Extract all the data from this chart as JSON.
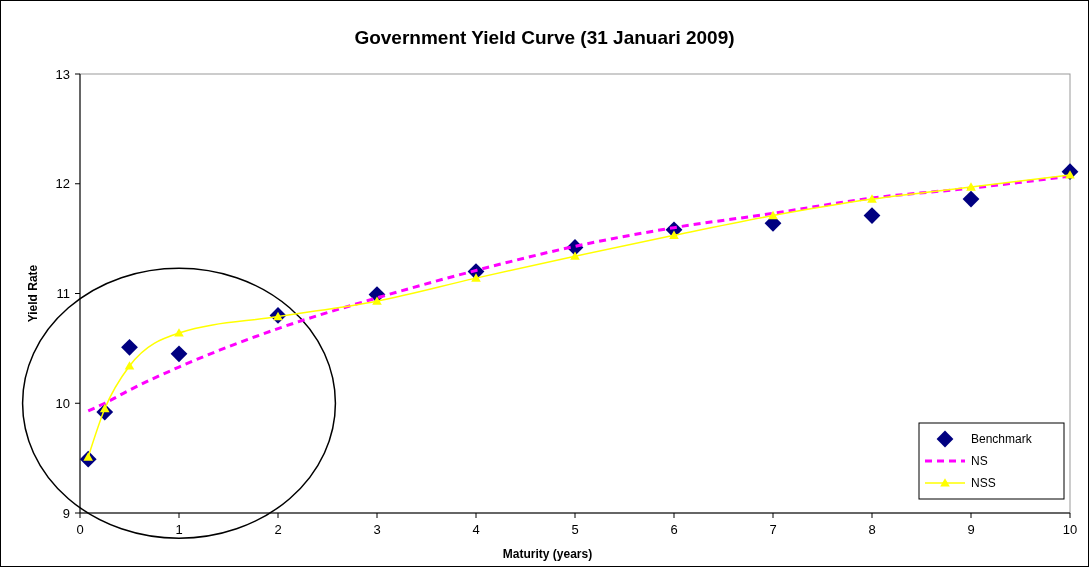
{
  "chart_data": {
    "type": "line",
    "title": "Government Yield Curve (31 Januari 2009)",
    "xlabel": "Maturity (years)",
    "ylabel": "Yield Rate",
    "x": [
      0.083,
      0.25,
      0.5,
      1,
      2,
      3,
      4,
      5,
      6,
      7,
      8,
      9,
      10
    ],
    "series": [
      {
        "name": "Benchmark",
        "type": "scatter",
        "marker": "diamond",
        "color": "#000080",
        "values": [
          9.49,
          9.92,
          10.51,
          10.45,
          10.8,
          10.99,
          11.2,
          11.42,
          11.58,
          11.64,
          11.71,
          11.86,
          12.11
        ]
      },
      {
        "name": "NS",
        "marker": "none",
        "line_style": "dashed",
        "color": "#ff00ff",
        "values": [
          9.93,
          10.0,
          10.12,
          10.33,
          10.68,
          10.96,
          11.21,
          11.43,
          11.6,
          11.73,
          11.87,
          11.96,
          12.07
        ]
      },
      {
        "name": "NSS",
        "marker": "triangle",
        "line_style": "solid",
        "color": "#ffff00",
        "values": [
          9.51,
          9.95,
          10.34,
          10.64,
          10.79,
          10.93,
          11.14,
          11.34,
          11.53,
          11.71,
          11.86,
          11.97,
          12.08
        ]
      }
    ],
    "xlim": [
      0,
      10
    ],
    "xticks": [
      0,
      1,
      2,
      3,
      4,
      5,
      6,
      7,
      8,
      9,
      10
    ],
    "ylim": [
      9,
      13
    ],
    "yticks": [
      9,
      10,
      11,
      12,
      13
    ],
    "grid": false,
    "legend": "bottom right"
  }
}
